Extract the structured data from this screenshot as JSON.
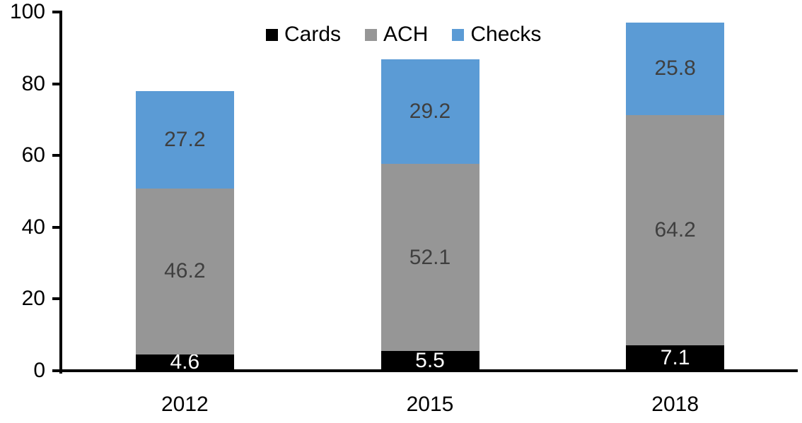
{
  "chart_data": {
    "type": "bar",
    "stacked": true,
    "categories": [
      "2012",
      "2015",
      "2018"
    ],
    "series": [
      {
        "name": "Cards",
        "color": "#000000",
        "label_color": "#ffffff",
        "values": [
          4.6,
          5.5,
          7.1
        ]
      },
      {
        "name": "ACH",
        "color": "#969696",
        "label_color": "#3f3f3f",
        "values": [
          46.2,
          52.1,
          64.2
        ]
      },
      {
        "name": "Checks",
        "color": "#5b9bd5",
        "label_color": "#3f3f3f",
        "values": [
          27.2,
          29.2,
          25.8
        ]
      }
    ],
    "title": "",
    "xlabel": "",
    "ylabel": "",
    "ylim": [
      0,
      100
    ],
    "y_ticks": [
      0,
      20,
      40,
      60,
      80,
      100
    ],
    "grid": false,
    "legend_position": "top",
    "data_labels": "inside-center",
    "axis_color": "#000000"
  }
}
